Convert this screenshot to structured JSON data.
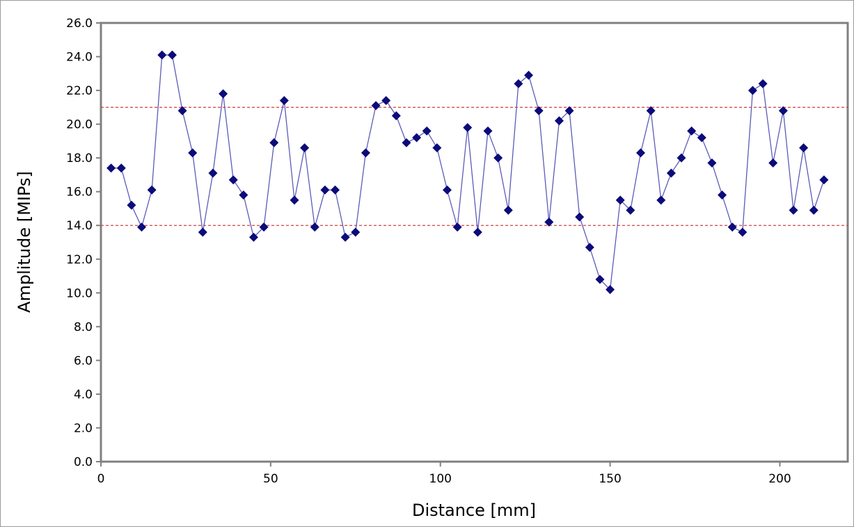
{
  "chart_data": {
    "type": "line",
    "xlabel": "Distance [mm]",
    "ylabel": "Amplitude [MIPs]",
    "xlim": [
      0,
      220
    ],
    "ylim": [
      0,
      26
    ],
    "x_ticks": [
      "0",
      "50",
      "100",
      "150",
      "200"
    ],
    "y_ticks": [
      "0.0",
      "2.0",
      "4.0",
      "6.0",
      "8.0",
      "10.0",
      "12.0",
      "14.0",
      "16.0",
      "18.0",
      "20.0",
      "22.0",
      "24.0",
      "26.0"
    ],
    "reference_lines": [
      {
        "y": 21.0,
        "color": "#d04040",
        "style": "dashed"
      },
      {
        "y": 14.0,
        "color": "#d04040",
        "style": "dashed"
      }
    ],
    "grid": false,
    "series": [
      {
        "marker": "diamond",
        "line_color": "#5b5bb8",
        "marker_color": "#0b0b7a",
        "x": [
          3,
          6,
          9,
          12,
          15,
          18,
          21,
          24,
          27,
          30,
          33,
          36,
          39,
          42,
          45,
          48,
          51,
          54,
          57,
          60,
          63,
          66,
          69,
          72,
          75,
          78,
          81,
          84,
          87,
          90,
          93,
          96,
          99,
          102,
          105,
          108,
          111,
          114,
          117,
          120,
          123,
          126,
          129,
          132,
          135,
          138,
          141,
          144,
          147,
          150,
          153,
          156,
          159,
          162,
          165,
          168,
          171,
          174,
          177,
          180,
          183,
          186,
          189,
          192,
          195,
          198,
          201,
          204,
          207,
          210,
          213
        ],
        "y": [
          17.4,
          17.4,
          15.2,
          13.9,
          16.1,
          24.1,
          24.1,
          20.8,
          18.3,
          13.6,
          17.1,
          21.8,
          16.7,
          15.8,
          13.3,
          13.9,
          18.9,
          21.4,
          15.5,
          18.6,
          13.9,
          16.1,
          16.1,
          13.3,
          13.6,
          18.3,
          21.1,
          21.4,
          20.5,
          18.9,
          19.2,
          19.6,
          18.6,
          16.1,
          13.9,
          19.8,
          13.6,
          19.6,
          18.0,
          14.9,
          22.4,
          22.9,
          20.8,
          14.2,
          20.2,
          20.8,
          14.5,
          12.7,
          10.8,
          10.2,
          15.5,
          14.9,
          18.3,
          20.8,
          15.5,
          17.1,
          18.0,
          19.6,
          19.2,
          17.7,
          15.8,
          13.9,
          13.6,
          22.0,
          22.4,
          17.7,
          20.8,
          14.9,
          18.6,
          14.9,
          16.7
        ]
      }
    ]
  }
}
